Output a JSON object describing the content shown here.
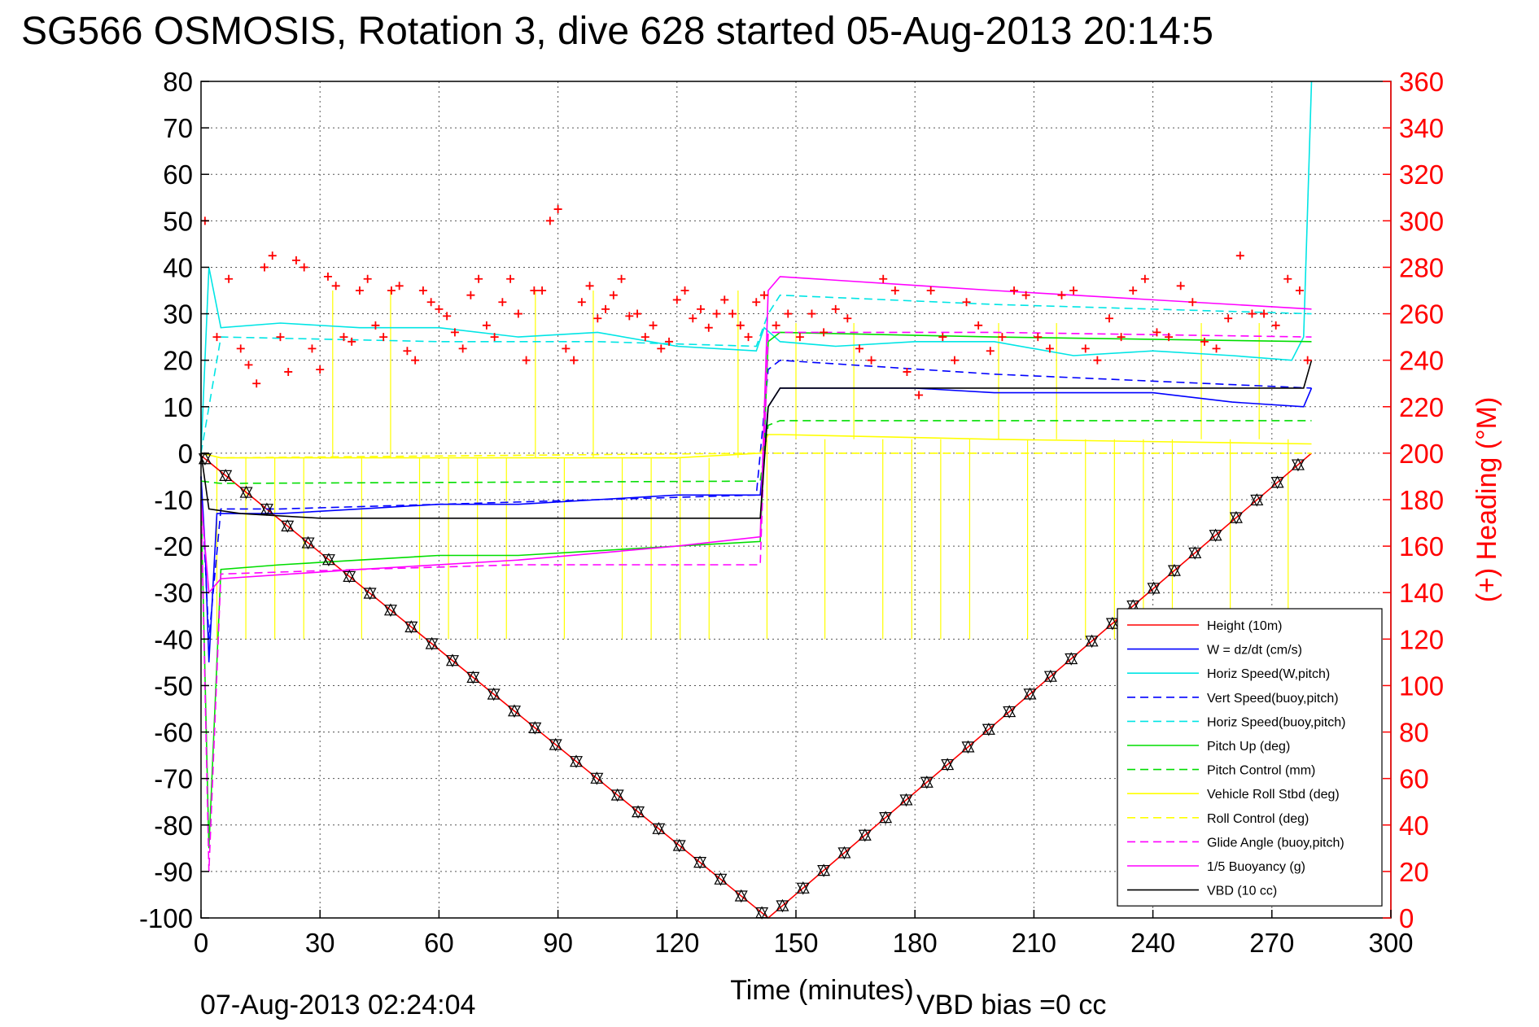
{
  "chart_data": {
    "type": "line",
    "title": "SG566 OSMOSIS, Rotation 3, dive 628 started 05-Aug-2013 20:14:5",
    "xlabel": "Time (minutes)",
    "ylabel": "",
    "y2label": "(+) Heading (°M)",
    "xlim": [
      0,
      300
    ],
    "ylim": [
      -100,
      80
    ],
    "y2lim": [
      0,
      360
    ],
    "xticks": [
      "0",
      "30",
      "60",
      "90",
      "120",
      "150",
      "180",
      "210",
      "240",
      "270",
      "300"
    ],
    "yticks": [
      "80",
      "70",
      "60",
      "50",
      "40",
      "30",
      "20",
      "10",
      "0",
      "-10",
      "-20",
      "-30",
      "-40",
      "-50",
      "-60",
      "-70",
      "-80",
      "-90",
      "-100"
    ],
    "y2ticks": [
      "360",
      "340",
      "320",
      "300",
      "280",
      "260",
      "240",
      "220",
      "200",
      "180",
      "160",
      "140",
      "120",
      "100",
      "80",
      "60",
      "40",
      "20",
      "0"
    ],
    "grid": true,
    "legend_position": "bottom-right",
    "footer_left": "07-Aug-2013 02:24:04",
    "footer_right": "VBD bias =0 cc",
    "series": [
      {
        "name": "Height (10m)",
        "color": "#ff0000",
        "style": "solid",
        "x": [
          0,
          143,
          280
        ],
        "y": [
          -0.5,
          -100,
          0
        ]
      },
      {
        "name": "W = dz/dt (cm/s)",
        "color": "#0000ff",
        "style": "solid",
        "x": [
          0,
          1,
          2,
          4,
          10,
          20,
          40,
          60,
          80,
          100,
          120,
          141,
          143,
          146,
          160,
          180,
          200,
          220,
          240,
          260,
          278,
          280
        ],
        "y": [
          -5,
          -20,
          -45,
          -13,
          -13,
          -13,
          -12,
          -11,
          -11,
          -10,
          -9,
          -9,
          10,
          14,
          14,
          14,
          13,
          13,
          13,
          11,
          10,
          14
        ]
      },
      {
        "name": "Horiz Speed(W,pitch)",
        "color": "#00e5e5",
        "style": "solid",
        "x": [
          0,
          2,
          5,
          20,
          40,
          60,
          80,
          100,
          120,
          140,
          142,
          146,
          160,
          180,
          200,
          220,
          240,
          260,
          275,
          278,
          280
        ],
        "y": [
          0,
          40,
          27,
          28,
          27,
          27,
          25,
          26,
          23,
          22,
          27,
          24,
          23,
          24,
          24,
          21,
          22,
          21,
          20,
          25,
          80
        ]
      },
      {
        "name": "Vert Speed(buoy,pitch)",
        "color": "#0000ff",
        "style": "dashed",
        "x": [
          0,
          2,
          5,
          20,
          60,
          100,
          140,
          143,
          146,
          200,
          280
        ],
        "y": [
          -5,
          -40,
          -12,
          -12,
          -11,
          -10,
          -9,
          18,
          20,
          17,
          14
        ]
      },
      {
        "name": "Horiz Speed(buoy,pitch)",
        "color": "#00e5e5",
        "style": "dashed",
        "x": [
          0,
          5,
          60,
          100,
          140,
          143,
          146,
          200,
          280
        ],
        "y": [
          0,
          25,
          24,
          24,
          23,
          30,
          34,
          32,
          30
        ]
      },
      {
        "name": "Pitch Up (deg)",
        "color": "#00dd00",
        "style": "solid",
        "x": [
          0,
          2,
          5,
          20,
          40,
          60,
          80,
          100,
          120,
          141,
          143,
          146,
          200,
          280
        ],
        "y": [
          -10,
          -85,
          -25,
          -24,
          -23,
          -22,
          -22,
          -21,
          -20,
          -19,
          24,
          26,
          25,
          24
        ]
      },
      {
        "name": "Pitch Control (mm)",
        "color": "#00dd00",
        "style": "dashed",
        "x": [
          0,
          5,
          141,
          143,
          146,
          280
        ],
        "y": [
          -6,
          -6.5,
          -6,
          6,
          7,
          7
        ]
      },
      {
        "name": "Vehicle Roll Stbd (deg)",
        "color": "#ffff00",
        "style": "solid",
        "x": [
          0,
          5,
          60,
          120,
          141,
          143,
          146,
          200,
          280
        ],
        "y": [
          0,
          -1,
          -1,
          -1,
          0,
          4,
          4,
          3,
          2
        ]
      },
      {
        "name": "Roll Control (deg)",
        "color": "#ffff00",
        "style": "dashed",
        "x": [
          0,
          5,
          141,
          143,
          146,
          280
        ],
        "y": [
          0,
          -1,
          0,
          0,
          0,
          0
        ]
      },
      {
        "name": "Glide Angle (buoy,pitch)",
        "color": "#ff00ff",
        "style": "dashed",
        "x": [
          0,
          2,
          5,
          40,
          80,
          120,
          141,
          143,
          146,
          200,
          280
        ],
        "y": [
          -10,
          -90,
          -26,
          -25,
          -24,
          -24,
          -24,
          26,
          26,
          26,
          25
        ]
      },
      {
        "name": "1/5 Buoyancy (g)",
        "color": "#ff00ff",
        "style": "solid",
        "x": [
          0,
          2,
          5,
          40,
          80,
          120,
          141,
          143,
          146,
          200,
          280
        ],
        "y": [
          -10,
          -30,
          -27,
          -25,
          -23,
          -20,
          -18,
          35,
          38,
          35,
          31
        ]
      },
      {
        "name": "VBD (10 cc)",
        "color": "#000000",
        "style": "solid",
        "x": [
          0,
          2,
          10,
          30,
          141,
          143,
          146,
          278,
          280
        ],
        "y": [
          0,
          -12,
          -13,
          -14,
          -14,
          10,
          14,
          14,
          20
        ]
      }
    ],
    "heading_series": {
      "color": "#ff0000",
      "marker": "+",
      "x": [
        1,
        4,
        7,
        10,
        12,
        14,
        16,
        18,
        20,
        22,
        24,
        26,
        28,
        30,
        32,
        34,
        36,
        38,
        40,
        42,
        44,
        46,
        48,
        50,
        52,
        54,
        56,
        58,
        60,
        62,
        64,
        66,
        68,
        70,
        72,
        74,
        76,
        78,
        80,
        82,
        84,
        86,
        88,
        90,
        92,
        94,
        96,
        98,
        100,
        102,
        104,
        106,
        108,
        110,
        112,
        114,
        116,
        118,
        120,
        122,
        124,
        126,
        128,
        130,
        132,
        134,
        136,
        138,
        140,
        142,
        145,
        148,
        151,
        154,
        157,
        160,
        163,
        166,
        169,
        172,
        175,
        178,
        181,
        184,
        187,
        190,
        193,
        196,
        199,
        202,
        205,
        208,
        211,
        214,
        217,
        220,
        223,
        226,
        229,
        232,
        235,
        238,
        241,
        244,
        247,
        250,
        253,
        256,
        259,
        262,
        265,
        268,
        271,
        274,
        277,
        279
      ],
      "y": [
        300,
        250,
        275,
        245,
        238,
        230,
        280,
        285,
        250,
        235,
        283,
        280,
        245,
        236,
        276,
        272,
        250,
        248,
        270,
        275,
        255,
        250,
        270,
        272,
        244,
        240,
        270,
        265,
        262,
        259,
        252,
        245,
        268,
        275,
        255,
        250,
        265,
        275,
        260,
        240,
        270,
        270,
        300,
        305,
        245,
        240,
        265,
        272,
        258,
        262,
        268,
        275,
        259,
        260,
        250,
        255,
        245,
        248,
        266,
        270,
        258,
        262,
        254,
        260,
        266,
        260,
        255,
        250,
        265,
        268,
        255,
        260,
        250,
        260,
        252,
        262,
        258,
        245,
        240,
        275,
        270,
        235,
        225,
        270,
        250,
        240,
        265,
        255,
        244,
        250,
        270,
        268,
        250,
        245,
        268,
        270,
        245,
        240,
        258,
        250,
        270,
        275,
        252,
        250,
        272,
        265,
        248,
        245,
        258,
        285,
        260,
        260,
        255,
        275,
        270,
        240
      ]
    }
  }
}
